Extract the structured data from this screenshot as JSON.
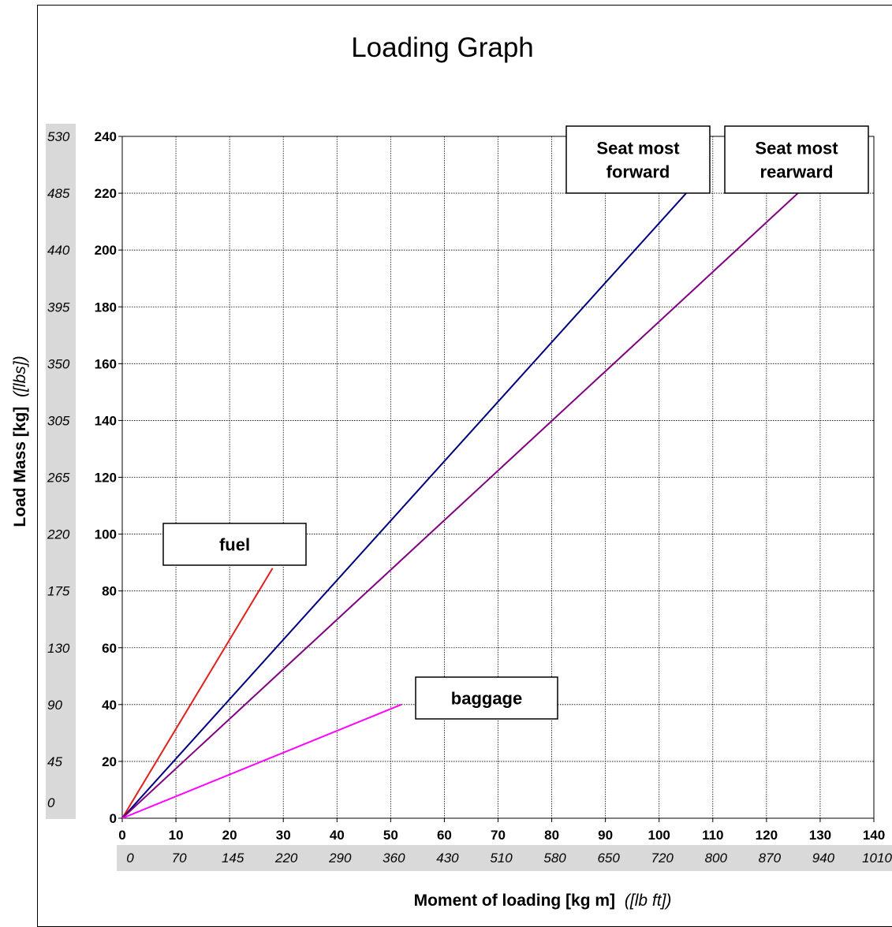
{
  "chart_data": {
    "type": "line",
    "title": "Loading Graph",
    "xlabel": "Moment of loading [kg m]",
    "xlabel_secondary": "([lb ft])",
    "ylabel": "Load Mass [kg]",
    "ylabel_secondary": "([lbs])",
    "xlim": [
      0,
      140
    ],
    "ylim": [
      0,
      240
    ],
    "x_ticks": [
      0,
      10,
      20,
      30,
      40,
      50,
      60,
      70,
      80,
      90,
      100,
      110,
      120,
      130,
      140
    ],
    "x_ticks_secondary": [
      "0",
      "70",
      "145",
      "220",
      "290",
      "360",
      "430",
      "510",
      "580",
      "650",
      "720",
      "800",
      "870",
      "940",
      "1010"
    ],
    "y_ticks": [
      0,
      20,
      40,
      60,
      80,
      100,
      120,
      140,
      160,
      180,
      200,
      220,
      240
    ],
    "y_ticks_secondary": [
      "0",
      "45",
      "90",
      "130",
      "175",
      "220",
      "265",
      "305",
      "350",
      "395",
      "440",
      "485",
      "530"
    ],
    "grid": true,
    "series": [
      {
        "name": "fuel",
        "color": "#e0201c",
        "x": [
          0,
          28
        ],
        "y": [
          0,
          88
        ]
      },
      {
        "name": "Seat most forward",
        "color": "#000080",
        "x": [
          0,
          106
        ],
        "y": [
          0,
          222
        ]
      },
      {
        "name": "Seat most rearward",
        "color": "#800080",
        "x": [
          0,
          127
        ],
        "y": [
          0,
          222
        ]
      },
      {
        "name": "baggage",
        "color": "#ff00ff",
        "x": [
          0,
          52
        ],
        "y": [
          0,
          40
        ]
      }
    ],
    "annotations": [
      {
        "lines": [
          "fuel"
        ]
      },
      {
        "lines": [
          "Seat most",
          "forward"
        ]
      },
      {
        "lines": [
          "Seat most",
          "rearward"
        ]
      },
      {
        "lines": [
          "baggage"
        ]
      }
    ]
  }
}
